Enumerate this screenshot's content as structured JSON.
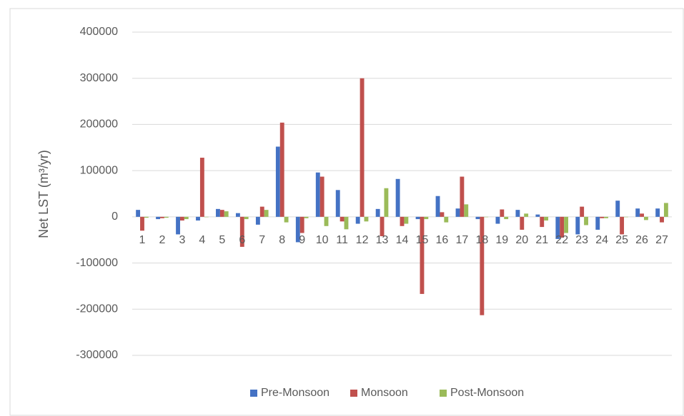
{
  "chart_data": {
    "type": "bar",
    "ylabel": "Net LST (m³/yr)",
    "categories": [
      "1",
      "2",
      "3",
      "4",
      "5",
      "6",
      "7",
      "8",
      "9",
      "10",
      "11",
      "12",
      "13",
      "14",
      "15",
      "16",
      "17",
      "18",
      "19",
      "20",
      "21",
      "22",
      "23",
      "24",
      "25",
      "26",
      "27"
    ],
    "series": [
      {
        "name": "Pre-Monsoon",
        "color": "#4472c4",
        "values": [
          15000,
          -5000,
          -38000,
          -8000,
          17000,
          8000,
          -17000,
          152000,
          -55000,
          96000,
          58000,
          -15000,
          17000,
          82000,
          -5000,
          45000,
          18000,
          -5000,
          -15000,
          15000,
          5000,
          -48000,
          -38000,
          -28000,
          35000,
          18000,
          18000
        ]
      },
      {
        "name": "Monsoon",
        "color": "#c0504d",
        "values": [
          -30000,
          -3000,
          -8000,
          128000,
          15000,
          -65000,
          22000,
          204000,
          -35000,
          87000,
          -10000,
          300000,
          -42000,
          -20000,
          -167000,
          10000,
          87000,
          -213000,
          16000,
          -28000,
          -22000,
          -45000,
          22000,
          -3000,
          -38000,
          7000,
          -12000
        ]
      },
      {
        "name": "Post-Monsoon",
        "color": "#9bbb59",
        "values": [
          -2000,
          -2000,
          -5000,
          0,
          12000,
          -5000,
          15000,
          -12000,
          -3000,
          -20000,
          -27000,
          -10000,
          62000,
          -15000,
          -5000,
          -12000,
          27000,
          0,
          -5000,
          7000,
          -8000,
          -35000,
          -18000,
          -3000,
          0,
          -7000,
          30000
        ]
      }
    ],
    "ylim": [
      -300000,
      400000
    ],
    "yticks": [
      -300000,
      -200000,
      -100000,
      0,
      100000,
      200000,
      300000,
      400000
    ],
    "grid": true,
    "legend": "bottom"
  }
}
